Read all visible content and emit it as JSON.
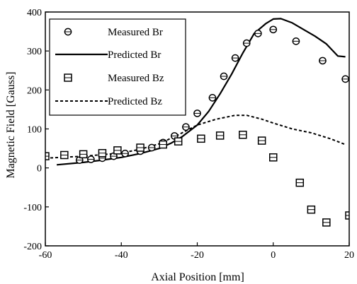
{
  "chart_data": {
    "type": "scatter",
    "xlabel": "Axial Position [mm]",
    "ylabel": "Magnetic Field [Gauss]",
    "xlim": [
      -60,
      20
    ],
    "ylim": [
      -200,
      400
    ],
    "xticks": [
      -60,
      -40,
      -20,
      0,
      20
    ],
    "yticks": [
      -200,
      -100,
      0,
      100,
      200,
      300,
      400
    ],
    "grid": false,
    "legend_position": "top-left",
    "series": [
      {
        "name": "Measured Br",
        "kind": "markers",
        "marker": "circle",
        "x": [
          -51,
          -48,
          -45,
          -42,
          -39,
          -35,
          -32,
          -29,
          -26,
          -23,
          -20,
          -16,
          -13,
          -10,
          -7,
          -4,
          0,
          6,
          13,
          19
        ],
        "y": [
          20,
          22,
          25,
          30,
          37,
          43,
          52,
          65,
          82,
          105,
          140,
          180,
          235,
          282,
          320,
          345,
          355,
          325,
          275,
          228
        ]
      },
      {
        "name": "Predicted Br",
        "kind": "line",
        "dash": "solid",
        "x": [
          -57,
          -50,
          -45,
          -40,
          -35,
          -30,
          -27,
          -24,
          -20,
          -17,
          -14,
          -11,
          -8,
          -5,
          -2,
          0,
          2,
          5,
          8,
          11,
          14,
          17,
          19
        ],
        "y": [
          8,
          14,
          20,
          27,
          37,
          50,
          63,
          80,
          110,
          145,
          190,
          240,
          295,
          345,
          370,
          382,
          383,
          372,
          355,
          338,
          318,
          287,
          285
        ]
      },
      {
        "name": "Measured Bz",
        "kind": "markers",
        "marker": "square",
        "x": [
          -60,
          -55,
          -50,
          -45,
          -41,
          -35,
          -29,
          -25,
          -19,
          -14,
          -8,
          -3,
          0,
          7,
          10,
          14,
          20
        ],
        "y": [
          30,
          33,
          35,
          38,
          45,
          52,
          60,
          68,
          75,
          83,
          85,
          70,
          27,
          -38,
          -107,
          -140,
          -122
        ]
      },
      {
        "name": "Predicted Bz",
        "kind": "line",
        "dash": "dashed",
        "x": [
          -60,
          -50,
          -40,
          -35,
          -30,
          -25,
          -20,
          -15,
          -10,
          -7,
          -3,
          0,
          5,
          10,
          15,
          19
        ],
        "y": [
          25,
          30,
          38,
          48,
          62,
          85,
          110,
          125,
          135,
          135,
          125,
          115,
          100,
          90,
          75,
          60
        ]
      }
    ]
  }
}
